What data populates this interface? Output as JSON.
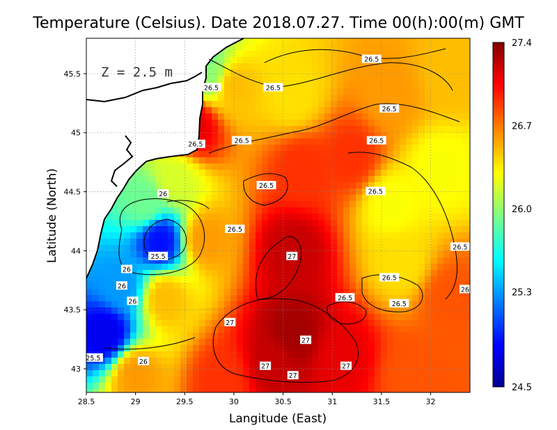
{
  "chart_data": {
    "type": "heatmap",
    "title": "Temperature (Celsius). Date 2018.07.27. Time 00(h):00(m)  GMT",
    "xlabel": "Langitude (East)",
    "ylabel": "Latitude (North)",
    "annotation": "Z = 2.5 m",
    "xlim": [
      28.5,
      32.4
    ],
    "ylim": [
      42.8,
      45.8
    ],
    "x_ticks": [
      "28.5",
      "29",
      "29.5",
      "30",
      "30.5",
      "31",
      "31.5",
      "32"
    ],
    "y_ticks": [
      "43",
      "43.5",
      "44",
      "44.5",
      "45",
      "45.5"
    ],
    "grid": true,
    "colorbar": {
      "min": 24.5,
      "max": 27.4,
      "tick_labels": [
        "27.4",
        "26.7",
        "26.0",
        "25.3",
        "24.5"
      ],
      "colors": [
        "#00008f",
        "#0000ff",
        "#0080ff",
        "#00ffff",
        "#80ff80",
        "#ffff00",
        "#ff8000",
        "#ff0000",
        "#800000"
      ]
    },
    "contour_labels": [
      {
        "text": "26.5",
        "x": 31.4,
        "y": 45.62
      },
      {
        "text": "26.5",
        "x": 29.77,
        "y": 45.38
      },
      {
        "text": "26.5",
        "x": 30.4,
        "y": 45.38
      },
      {
        "text": "26.5",
        "x": 31.58,
        "y": 45.2
      },
      {
        "text": "26.5",
        "x": 31.45,
        "y": 44.93
      },
      {
        "text": "26.5",
        "x": 30.08,
        "y": 44.93
      },
      {
        "text": "26.5",
        "x": 29.61,
        "y": 44.9
      },
      {
        "text": "26.5",
        "x": 30.33,
        "y": 44.55
      },
      {
        "text": "26.5",
        "x": 31.44,
        "y": 44.5
      },
      {
        "text": "26.5",
        "x": 30.01,
        "y": 44.18
      },
      {
        "text": "26.5",
        "x": 32.3,
        "y": 44.03
      },
      {
        "text": "26.5",
        "x": 31.58,
        "y": 43.77
      },
      {
        "text": "26.5",
        "x": 31.13,
        "y": 43.6
      },
      {
        "text": "26.5",
        "x": 31.68,
        "y": 43.55
      },
      {
        "text": "26",
        "x": 29.28,
        "y": 44.48
      },
      {
        "text": "26",
        "x": 28.86,
        "y": 43.7
      },
      {
        "text": "26",
        "x": 28.97,
        "y": 43.57
      },
      {
        "text": "26",
        "x": 28.91,
        "y": 43.84
      },
      {
        "text": "26",
        "x": 29.08,
        "y": 43.06
      },
      {
        "text": "25.5",
        "x": 29.23,
        "y": 43.95
      },
      {
        "text": "25.5",
        "x": 28.57,
        "y": 43.09
      },
      {
        "text": "27",
        "x": 30.59,
        "y": 43.95
      },
      {
        "text": "27",
        "x": 29.96,
        "y": 43.39
      },
      {
        "text": "27",
        "x": 30.73,
        "y": 43.24
      },
      {
        "text": "27",
        "x": 30.32,
        "y": 43.02
      },
      {
        "text": "27",
        "x": 31.14,
        "y": 43.02
      },
      {
        "text": "27",
        "x": 30.6,
        "y": 42.94
      },
      {
        "text": "26",
        "x": 32.35,
        "y": 43.67
      }
    ],
    "temperature_field_description_points": [
      {
        "x": 29.25,
        "y": 44.08,
        "value": 24.9
      },
      {
        "x": 28.7,
        "y": 43.3,
        "value": 24.8
      },
      {
        "x": 28.85,
        "y": 43.7,
        "value": 25.3
      },
      {
        "x": 29.1,
        "y": 44.4,
        "value": 25.9
      },
      {
        "x": 29.4,
        "y": 44.6,
        "value": 26.2
      },
      {
        "x": 29.3,
        "y": 43.6,
        "value": 26.5
      },
      {
        "x": 29.7,
        "y": 44.1,
        "value": 26.6
      },
      {
        "x": 30.6,
        "y": 44.0,
        "value": 27.2
      },
      {
        "x": 30.6,
        "y": 43.3,
        "value": 27.3
      },
      {
        "x": 30.4,
        "y": 43.05,
        "value": 27.2
      },
      {
        "x": 31.1,
        "y": 43.1,
        "value": 27.1
      },
      {
        "x": 30.7,
        "y": 44.7,
        "value": 26.9
      },
      {
        "x": 31.2,
        "y": 44.8,
        "value": 26.9
      },
      {
        "x": 30.0,
        "y": 45.4,
        "value": 26.5
      },
      {
        "x": 30.6,
        "y": 45.3,
        "value": 26.4
      },
      {
        "x": 31.6,
        "y": 45.3,
        "value": 26.6
      },
      {
        "x": 32.2,
        "y": 45.5,
        "value": 26.5
      },
      {
        "x": 31.6,
        "y": 44.4,
        "value": 26.3
      },
      {
        "x": 32.1,
        "y": 44.7,
        "value": 26.3
      },
      {
        "x": 31.7,
        "y": 43.9,
        "value": 26.4
      },
      {
        "x": 32.2,
        "y": 43.6,
        "value": 26.8
      },
      {
        "x": 29.75,
        "y": 45.5,
        "value": 26.0
      },
      {
        "x": 29.65,
        "y": 45.62,
        "value": 25.8
      },
      {
        "x": 29.6,
        "y": 45.05,
        "value": 27.1
      },
      {
        "x": 29.0,
        "y": 42.95,
        "value": 26.6
      },
      {
        "x": 31.8,
        "y": 42.95,
        "value": 26.8
      },
      {
        "x": 29.9,
        "y": 42.9,
        "value": 26.9
      }
    ]
  }
}
